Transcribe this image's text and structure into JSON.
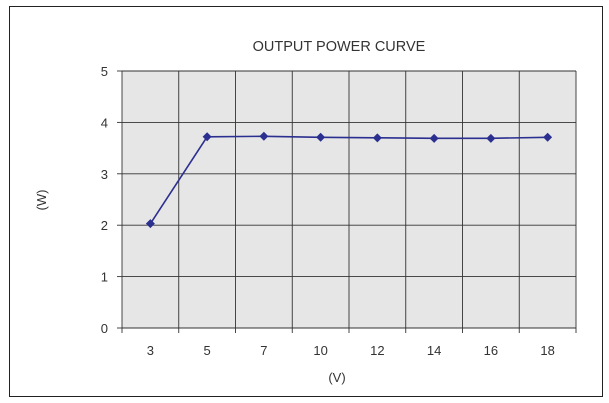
{
  "chart_data": {
    "type": "line",
    "title": "OUTPUT POWER CURVE",
    "xlabel": "(V)",
    "ylabel": "(W)",
    "categories": [
      "3",
      "5",
      "7",
      "10",
      "12",
      "14",
      "16",
      "18"
    ],
    "series": [
      {
        "values": [
          2.03,
          3.72,
          3.73,
          3.71,
          3.7,
          3.69,
          3.69,
          3.71
        ]
      }
    ],
    "ylim": [
      0,
      5
    ],
    "yticks": [
      "0",
      "1",
      "2",
      "3",
      "4",
      "5"
    ],
    "grid": true,
    "legend": "none",
    "colors": {
      "plot_background": "#e6e6e6",
      "grid": "#333333",
      "line": "#2b2f8f",
      "marker": "#2b2f8f",
      "text": "#333333"
    }
  }
}
